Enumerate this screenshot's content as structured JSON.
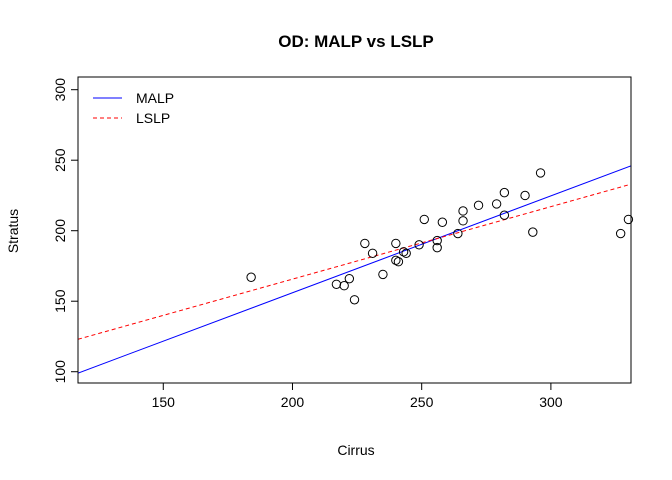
{
  "chart_data": {
    "type": "scatter",
    "title": "OD: MALP vs LSLP",
    "xlabel": "Cirrus",
    "ylabel": "Stratus",
    "xlim": [
      117,
      331
    ],
    "ylim": [
      92,
      309
    ],
    "xticks": [
      150,
      200,
      250,
      300
    ],
    "yticks": [
      100,
      150,
      200,
      250,
      300
    ],
    "grid": false,
    "legend_position": "top-left",
    "points": [
      {
        "x": 184,
        "y": 167
      },
      {
        "x": 217,
        "y": 162
      },
      {
        "x": 220,
        "y": 161
      },
      {
        "x": 222,
        "y": 166
      },
      {
        "x": 224,
        "y": 151
      },
      {
        "x": 228,
        "y": 191
      },
      {
        "x": 231,
        "y": 184
      },
      {
        "x": 235,
        "y": 169
      },
      {
        "x": 240,
        "y": 179
      },
      {
        "x": 240,
        "y": 191
      },
      {
        "x": 241,
        "y": 178
      },
      {
        "x": 243,
        "y": 185
      },
      {
        "x": 244,
        "y": 184
      },
      {
        "x": 249,
        "y": 190
      },
      {
        "x": 251,
        "y": 208
      },
      {
        "x": 256,
        "y": 188
      },
      {
        "x": 256,
        "y": 193
      },
      {
        "x": 258,
        "y": 206
      },
      {
        "x": 264,
        "y": 198
      },
      {
        "x": 266,
        "y": 207
      },
      {
        "x": 266,
        "y": 214
      },
      {
        "x": 272,
        "y": 218
      },
      {
        "x": 279,
        "y": 219
      },
      {
        "x": 282,
        "y": 211
      },
      {
        "x": 282,
        "y": 227
      },
      {
        "x": 290,
        "y": 225
      },
      {
        "x": 293,
        "y": 199
      },
      {
        "x": 296,
        "y": 241
      },
      {
        "x": 327,
        "y": 198
      },
      {
        "x": 330,
        "y": 208
      }
    ],
    "series": [
      {
        "name": "MALP",
        "color": "#0000ff",
        "dash": "solid",
        "line": {
          "x0": 117,
          "y0": 99,
          "x1": 331,
          "y1": 246
        }
      },
      {
        "name": "LSLP",
        "color": "#ff0000",
        "dash": "dashed",
        "line": {
          "x0": 117,
          "y0": 123,
          "x1": 331,
          "y1": 233
        }
      }
    ]
  }
}
